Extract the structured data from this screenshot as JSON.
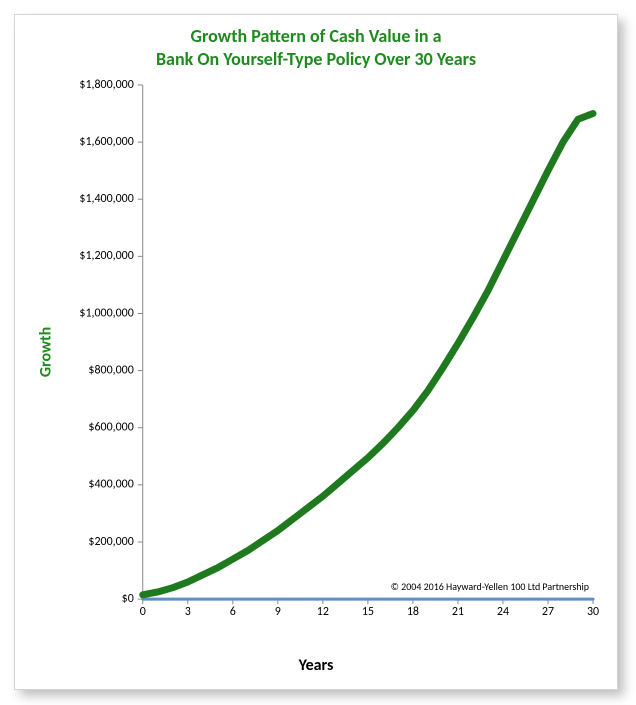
{
  "chart": {
    "type": "line",
    "title": "Growth Pattern of Cash Value in a\nBank On Yourself-Type Policy Over 30 Years",
    "title_color": "#1f8a1f",
    "title_fontsize": 18,
    "ylabel": "Growth",
    "ylabel_color": "#1f8a1f",
    "ylabel_fontsize": 16,
    "xlabel": "Years",
    "xlabel_color": "#000000",
    "xlabel_fontsize": 16,
    "background_color": "#ffffff",
    "plot_border_color": "#888888",
    "xlim": [
      0,
      30
    ],
    "ylim": [
      0,
      1800000
    ],
    "xticks": [
      0,
      3,
      6,
      9,
      12,
      15,
      18,
      21,
      24,
      27,
      30
    ],
    "yticks": [
      0,
      200000,
      400000,
      600000,
      800000,
      1000000,
      1200000,
      1400000,
      1600000,
      1800000
    ],
    "ytick_labels": [
      "$0",
      "$200,000",
      "$400,000",
      "$600,000",
      "$800,000",
      "$1,000,000",
      "$1,200,000",
      "$1,400,000",
      "$1,600,000",
      "$1,800,000"
    ],
    "series": [
      {
        "name": "baseline",
        "color": "#5b8ecb",
        "stroke_width": 3,
        "x": [
          0,
          30
        ],
        "y": [
          0,
          0
        ]
      },
      {
        "name": "cash_value_growth",
        "color": "#1f7a1f",
        "stroke_width": 7,
        "x": [
          0,
          1,
          2,
          3,
          4,
          5,
          6,
          7,
          8,
          9,
          10,
          11,
          12,
          13,
          14,
          15,
          16,
          17,
          18,
          19,
          20,
          21,
          22,
          23,
          24,
          25,
          26,
          27,
          28,
          29,
          30
        ],
        "y": [
          15000,
          25000,
          40000,
          60000,
          85000,
          110000,
          140000,
          170000,
          205000,
          240000,
          280000,
          320000,
          360000,
          405000,
          450000,
          495000,
          545000,
          600000,
          660000,
          730000,
          810000,
          895000,
          985000,
          1080000,
          1185000,
          1290000,
          1395000,
          1500000,
          1600000,
          1680000,
          1700000
        ]
      }
    ],
    "copyright": "© 2004 2016 Hayward-Yellen 100 Ltd Partnership",
    "copyright_fontsize": 10,
    "grid": false,
    "tick_length": 5,
    "card_border_color": "#d4d4d4",
    "card_shadow": "6px 6px 10px rgba(0,0,0,0.25)"
  }
}
